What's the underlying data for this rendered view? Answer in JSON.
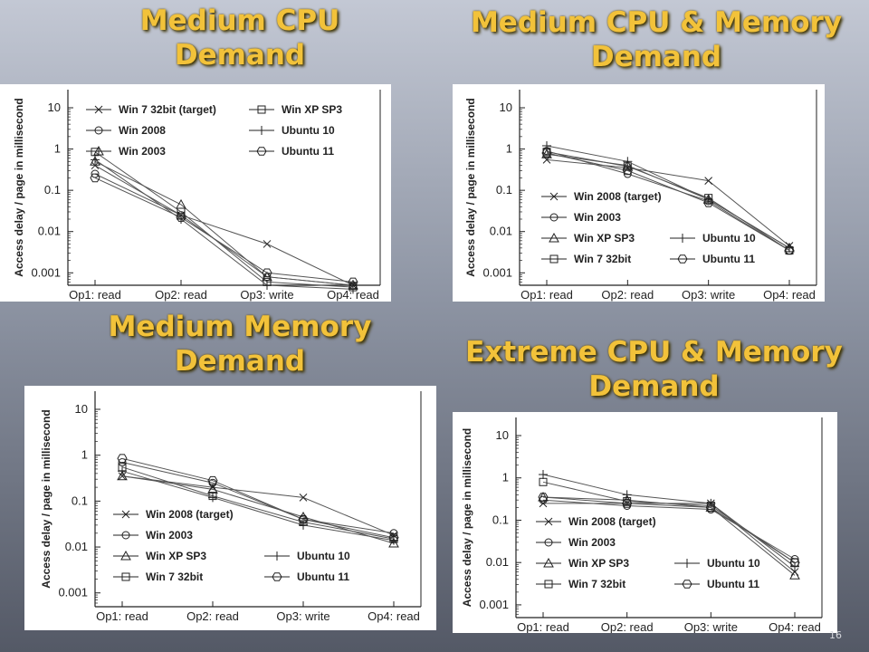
{
  "slide": {
    "page_number": "16"
  },
  "chart_data": [
    {
      "type": "line",
      "title": "Medium CPU\nDemand",
      "xlabel": "",
      "ylabel": "Access delay / page in millisecond",
      "yscale": "log",
      "ylim": [
        0.0005,
        10
      ],
      "y_ticks": [
        "10",
        "1",
        "0.1",
        "0.01",
        "0.001"
      ],
      "categories": [
        "Op1: read",
        "Op2: read",
        "Op3: write",
        "Op4: read"
      ],
      "legend_position": "top",
      "series": [
        {
          "name": "Win 7 32bit (target)",
          "marker": "x",
          "values": [
            0.4,
            0.025,
            0.005,
            0.0005
          ]
        },
        {
          "name": "Win 2008",
          "marker": "circle",
          "values": [
            0.25,
            0.025,
            0.0008,
            0.0005
          ]
        },
        {
          "name": "Win 2003",
          "marker": "triangle",
          "values": [
            0.5,
            0.045,
            0.0008,
            0.0005
          ]
        },
        {
          "name": "Win XP SP3",
          "marker": "square",
          "values": [
            0.85,
            0.03,
            0.0006,
            0.00045
          ]
        },
        {
          "name": "Ubuntu 10",
          "marker": "plus",
          "values": [
            0.55,
            0.02,
            0.0005,
            0.0004
          ]
        },
        {
          "name": "Ubuntu 11",
          "marker": "hexagon",
          "values": [
            0.2,
            0.022,
            0.001,
            0.0006
          ]
        }
      ]
    },
    {
      "type": "line",
      "title": "Medium CPU & Memory\nDemand",
      "xlabel": "",
      "ylabel": "Access delay / page in millisecond",
      "yscale": "log",
      "ylim": [
        0.0005,
        10
      ],
      "y_ticks": [
        "10",
        "1",
        "0.1",
        "0.01",
        "0.001"
      ],
      "categories": [
        "Op1: read",
        "Op2: read",
        "Op3: write",
        "Op4: read"
      ],
      "legend_position": "bottom-left",
      "series": [
        {
          "name": "Win 2008 (target)",
          "marker": "x",
          "values": [
            0.55,
            0.35,
            0.17,
            0.0045
          ]
        },
        {
          "name": "Win 2003",
          "marker": "circle",
          "values": [
            0.9,
            0.25,
            0.055,
            0.0035
          ]
        },
        {
          "name": "Win XP SP3",
          "marker": "triangle",
          "values": [
            0.75,
            0.4,
            0.06,
            0.004
          ]
        },
        {
          "name": "Win 7 32bit",
          "marker": "square",
          "values": [
            0.85,
            0.38,
            0.065,
            0.0035
          ]
        },
        {
          "name": "Ubuntu 10",
          "marker": "plus",
          "values": [
            1.2,
            0.5,
            0.06,
            0.004
          ]
        },
        {
          "name": "Ubuntu 11",
          "marker": "hexagon",
          "values": [
            0.8,
            0.3,
            0.05,
            0.0035
          ]
        }
      ]
    },
    {
      "type": "line",
      "title": "Medium Memory\nDemand",
      "xlabel": "",
      "ylabel": "Access delay / page in millisecond",
      "yscale": "log",
      "ylim": [
        0.0005,
        10
      ],
      "y_ticks": [
        "10",
        "1",
        "0.1",
        "0.01",
        "0.001"
      ],
      "categories": [
        "Op1: read",
        "Op2: read",
        "Op3: write",
        "Op4: read"
      ],
      "legend_position": "bottom-left",
      "series": [
        {
          "name": "Win 2008 (target)",
          "marker": "x",
          "values": [
            0.35,
            0.2,
            0.12,
            0.018
          ]
        },
        {
          "name": "Win 2003",
          "marker": "circle",
          "values": [
            0.7,
            0.25,
            0.04,
            0.02
          ]
        },
        {
          "name": "Win XP SP3",
          "marker": "triangle",
          "values": [
            0.35,
            0.18,
            0.045,
            0.012
          ]
        },
        {
          "name": "Win 7 32bit",
          "marker": "square",
          "values": [
            0.55,
            0.13,
            0.035,
            0.015
          ]
        },
        {
          "name": "Ubuntu 10",
          "marker": "plus",
          "values": [
            0.45,
            0.12,
            0.03,
            0.014
          ]
        },
        {
          "name": "Ubuntu 11",
          "marker": "hexagon",
          "values": [
            0.85,
            0.28,
            0.04,
            0.016
          ]
        }
      ]
    },
    {
      "type": "line",
      "title": "Extreme CPU & Memory\nDemand",
      "xlabel": "",
      "ylabel": "Access delay / page in millisecond",
      "yscale": "log",
      "ylim": [
        0.0005,
        10
      ],
      "y_ticks": [
        "10",
        "1",
        "0.1",
        "0.01",
        "0.001"
      ],
      "categories": [
        "Op1: read",
        "Op2: read",
        "Op3: write",
        "Op4: read"
      ],
      "legend_position": "bottom-left",
      "series": [
        {
          "name": "Win 2008 (target)",
          "marker": "x",
          "values": [
            0.25,
            0.25,
            0.25,
            0.006
          ]
        },
        {
          "name": "Win 2003",
          "marker": "circle",
          "values": [
            0.3,
            0.22,
            0.18,
            0.012
          ]
        },
        {
          "name": "Win XP SP3",
          "marker": "triangle",
          "values": [
            0.35,
            0.3,
            0.2,
            0.005
          ]
        },
        {
          "name": "Win 7 32bit",
          "marker": "square",
          "values": [
            0.8,
            0.28,
            0.22,
            0.01
          ]
        },
        {
          "name": "Ubuntu 10",
          "marker": "plus",
          "values": [
            1.2,
            0.4,
            0.25,
            0.008
          ]
        },
        {
          "name": "Ubuntu 11",
          "marker": "hexagon",
          "values": [
            0.35,
            0.25,
            0.2,
            0.01
          ]
        }
      ]
    }
  ]
}
